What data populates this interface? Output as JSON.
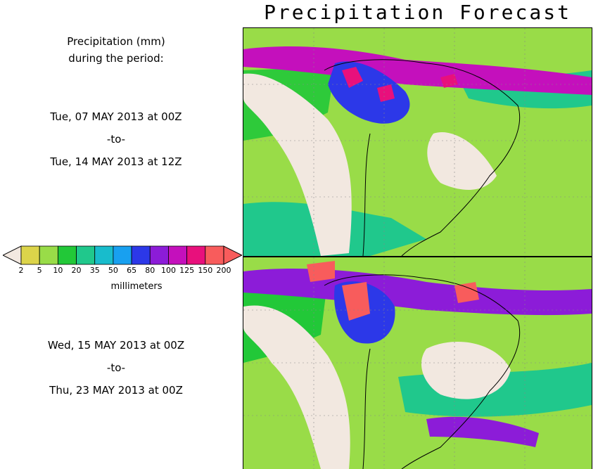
{
  "title": "Precipitation Forecast",
  "units": {
    "line1": "Precipitation (mm)",
    "line2": "during the period:"
  },
  "periods": [
    {
      "start": "Tue, 07 MAY 2013 at 00Z",
      "sep": "-to-",
      "end": "Tue, 14 MAY 2013 at 12Z"
    },
    {
      "start": "Wed, 15 MAY 2013 at 00Z",
      "sep": "-to-",
      "end": "Thu, 23 MAY 2013 at 00Z"
    }
  ],
  "color_scale": {
    "unit": "millimeters",
    "ticks": [
      "2",
      "5",
      "10",
      "20",
      "35",
      "50",
      "65",
      "80",
      "100",
      "125",
      "150",
      "200"
    ],
    "colors": [
      "#f2e8e0",
      "#dcd44a",
      "#99dc48",
      "#22c838",
      "#20c88c",
      "#18bccc",
      "#18a0f0",
      "#2c38e8",
      "#8c1cd8",
      "#c410bc",
      "#e8107c",
      "#f85c5c",
      "#f85c5c"
    ]
  },
  "map_colors": {
    "land_dry": "#f2e8e0",
    "ocean_base": "#99dc48",
    "boundary": "#000000",
    "grid": "#888888"
  }
}
